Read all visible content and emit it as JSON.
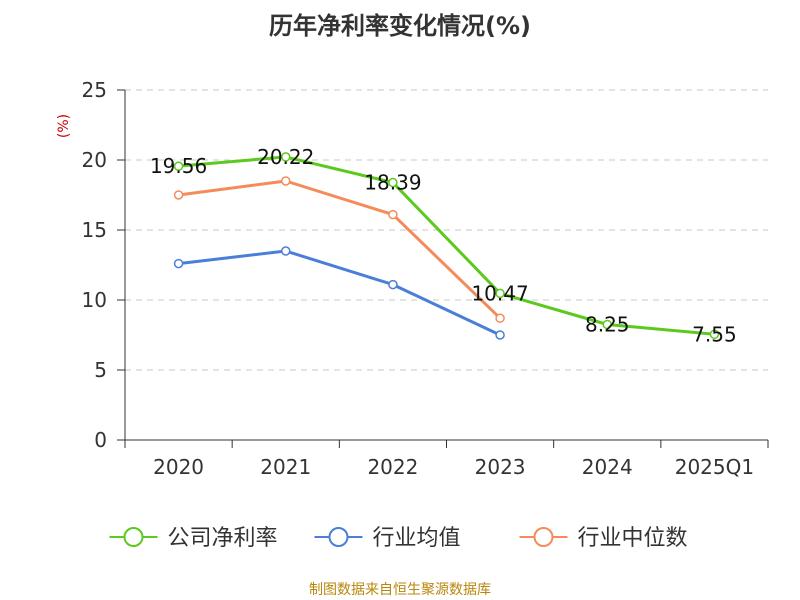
{
  "title": "历年净利率变化情况(%)",
  "source": "制图数据来自恒生聚源数据库",
  "chart_data": {
    "type": "line",
    "title": "历年净利率变化情况(%)",
    "ylabel": "(%)",
    "xlabel": "",
    "categories": [
      "2020",
      "2021",
      "2022",
      "2023",
      "2024",
      "2025Q1"
    ],
    "ylim": [
      0,
      25
    ],
    "yticks": [
      0,
      5,
      10,
      15,
      20,
      25
    ],
    "grid": "horizontal-dashed",
    "legend_position": "bottom",
    "series": [
      {
        "name": "公司净利率",
        "color": "#5cc91e",
        "values": [
          19.56,
          20.22,
          18.39,
          10.47,
          8.25,
          7.55
        ],
        "labels": [
          "19.56",
          "20.22",
          "18.39",
          "10.47",
          "8.25",
          "7.55"
        ]
      },
      {
        "name": "行业均值",
        "color": "#4a7fd8",
        "values": [
          12.6,
          13.5,
          11.1,
          7.5,
          null,
          null
        ]
      },
      {
        "name": "行业中位数",
        "color": "#f48b5a",
        "values": [
          17.5,
          18.5,
          16.1,
          8.7,
          null,
          null
        ]
      }
    ]
  }
}
